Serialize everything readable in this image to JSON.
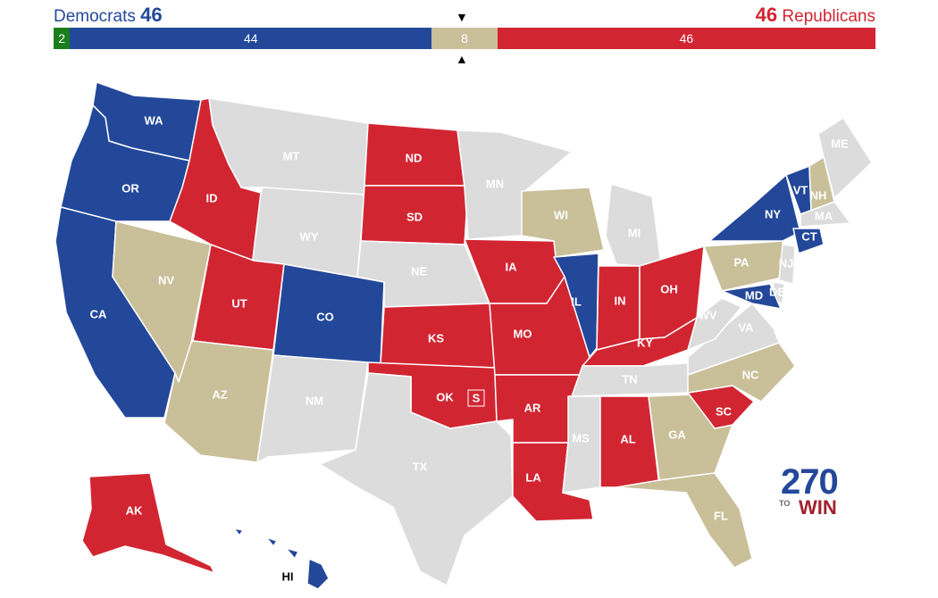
{
  "header": {
    "dem_label": "Democrats",
    "dem_total": "46",
    "rep_total": "46",
    "rep_label": "Republicans"
  },
  "bar": {
    "independent": {
      "value": 2,
      "label": "2",
      "color": "#1a7f1a"
    },
    "democrat": {
      "value": 44,
      "label": "44",
      "color": "#23489a"
    },
    "tossup": {
      "value": 8,
      "label": "8",
      "color": "#c9bf99"
    },
    "republican": {
      "value": 46,
      "label": "46",
      "color": "#d22532"
    },
    "marker_top": "▼",
    "marker_bottom": "▲"
  },
  "colors": {
    "dem": "#23489a",
    "rep": "#d22532",
    "tossup": "#c9bf99",
    "none": "#dcdcdc",
    "border": "#ffffff"
  },
  "states": [
    {
      "abbr": "WA",
      "status": "dem"
    },
    {
      "abbr": "OR",
      "status": "dem"
    },
    {
      "abbr": "CA",
      "status": "dem"
    },
    {
      "abbr": "NV",
      "status": "tossup"
    },
    {
      "abbr": "ID",
      "status": "rep"
    },
    {
      "abbr": "MT",
      "status": "none"
    },
    {
      "abbr": "WY",
      "status": "none"
    },
    {
      "abbr": "UT",
      "status": "rep"
    },
    {
      "abbr": "AZ",
      "status": "tossup"
    },
    {
      "abbr": "CO",
      "status": "dem"
    },
    {
      "abbr": "NM",
      "status": "none"
    },
    {
      "abbr": "ND",
      "status": "rep"
    },
    {
      "abbr": "SD",
      "status": "rep"
    },
    {
      "abbr": "NE",
      "status": "none"
    },
    {
      "abbr": "KS",
      "status": "rep"
    },
    {
      "abbr": "OK",
      "status": "rep",
      "special": "S"
    },
    {
      "abbr": "TX",
      "status": "none"
    },
    {
      "abbr": "MN",
      "status": "none"
    },
    {
      "abbr": "IA",
      "status": "rep"
    },
    {
      "abbr": "MO",
      "status": "rep"
    },
    {
      "abbr": "AR",
      "status": "rep"
    },
    {
      "abbr": "LA",
      "status": "rep"
    },
    {
      "abbr": "WI",
      "status": "tossup"
    },
    {
      "abbr": "IL",
      "status": "dem"
    },
    {
      "abbr": "MI",
      "status": "none"
    },
    {
      "abbr": "IN",
      "status": "rep"
    },
    {
      "abbr": "OH",
      "status": "rep"
    },
    {
      "abbr": "KY",
      "status": "rep"
    },
    {
      "abbr": "TN",
      "status": "none"
    },
    {
      "abbr": "MS",
      "status": "none"
    },
    {
      "abbr": "AL",
      "status": "rep"
    },
    {
      "abbr": "GA",
      "status": "tossup"
    },
    {
      "abbr": "FL",
      "status": "tossup"
    },
    {
      "abbr": "SC",
      "status": "rep"
    },
    {
      "abbr": "NC",
      "status": "tossup"
    },
    {
      "abbr": "VA",
      "status": "none"
    },
    {
      "abbr": "WV",
      "status": "none"
    },
    {
      "abbr": "PA",
      "status": "tossup"
    },
    {
      "abbr": "NY",
      "status": "dem"
    },
    {
      "abbr": "VT",
      "status": "dem"
    },
    {
      "abbr": "NH",
      "status": "tossup"
    },
    {
      "abbr": "ME",
      "status": "none"
    },
    {
      "abbr": "MA",
      "status": "none"
    },
    {
      "abbr": "CT",
      "status": "dem"
    },
    {
      "abbr": "NJ",
      "status": "none"
    },
    {
      "abbr": "DE",
      "status": "none"
    },
    {
      "abbr": "MD",
      "status": "dem"
    },
    {
      "abbr": "AK",
      "status": "rep"
    },
    {
      "abbr": "HI",
      "status": "dem"
    }
  ],
  "logo": {
    "number": "270",
    "to": "TO",
    "win": "WIN"
  }
}
